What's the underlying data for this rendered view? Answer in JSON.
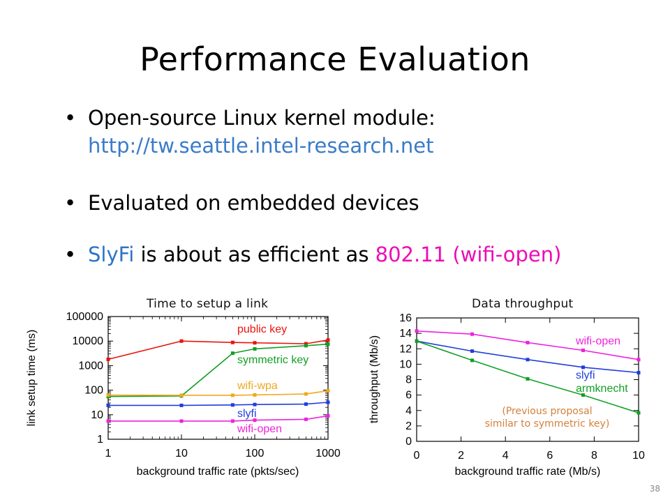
{
  "slide": {
    "title": "Performance Evaluation",
    "bullets": {
      "b1_text": "Open-source Linux kernel module:",
      "b1_url": "http://tw.seattle.intel-research.net",
      "b2_text": "Evaluated on embedded devices",
      "b3_part1": "SlyFi",
      "b3_part2": " is about as efficient as ",
      "b3_part3": "802.11 (wifi-open)",
      "bullet_glyph": "•"
    },
    "page_number": "38",
    "colors": {
      "slyfi_text": "#2e74c8",
      "wifi_open_text": "#ee0bb5",
      "url": "#3a7bc8"
    }
  },
  "chart_data": [
    {
      "type": "line",
      "caption": "Time to setup a link",
      "xlabel": "background traffic rate (pkts/sec)",
      "ylabel": "link setup time (ms)",
      "xscale": "log",
      "yscale": "log",
      "xlim": [
        1,
        1000
      ],
      "ylim": [
        1,
        100000
      ],
      "xticks": [
        1,
        10,
        100,
        1000
      ],
      "xtick_labels": [
        "1",
        "10",
        "100",
        "1000"
      ],
      "yticks": [
        1,
        10,
        100,
        1000,
        10000,
        100000
      ],
      "ytick_labels": [
        "1",
        "10",
        "100",
        "1000",
        "10000",
        "100000"
      ],
      "grid": false,
      "series": [
        {
          "name": "public key",
          "color": "#e8140c",
          "label_color": "#e8140c",
          "x": [
            1,
            10,
            50,
            100,
            500,
            1000
          ],
          "y": [
            1800,
            10000,
            8800,
            8500,
            7800,
            11000
          ]
        },
        {
          "name": "symmetric key",
          "color": "#12a023",
          "label_color": "#12a023",
          "x": [
            1,
            10,
            50,
            100,
            500,
            1000
          ],
          "y": [
            55,
            58,
            3200,
            4800,
            6500,
            7500
          ]
        },
        {
          "name": "wifi-wpa",
          "color": "#f0a81e",
          "label_color": "#f0a81e",
          "x": [
            1,
            10,
            50,
            100,
            500,
            1000
          ],
          "y": [
            63,
            62,
            62,
            64,
            70,
            95
          ]
        },
        {
          "name": "slyfi",
          "color": "#1f3fdc",
          "label_color": "#1f3fdc",
          "x": [
            1,
            10,
            50,
            100,
            500,
            1000
          ],
          "y": [
            24,
            24,
            25,
            26,
            27,
            32
          ]
        },
        {
          "name": "wifi-open",
          "color": "#ee22dd",
          "label_color": "#ee22dd",
          "x": [
            1,
            10,
            50,
            100,
            500,
            1000
          ],
          "y": [
            5.5,
            5.5,
            5.5,
            6,
            6.5,
            9
          ]
        }
      ]
    },
    {
      "type": "line",
      "caption": "Data throughput",
      "xlabel": "background traffic rate (Mb/s)",
      "ylabel": "throughput (Mb/s)",
      "xlim": [
        0,
        10
      ],
      "ylim": [
        0,
        16
      ],
      "xticks": [
        0,
        2,
        4,
        6,
        8,
        10
      ],
      "xtick_labels": [
        "0",
        "2",
        "4",
        "6",
        "8",
        "10"
      ],
      "yticks": [
        0,
        2,
        4,
        6,
        8,
        10,
        12,
        14,
        16
      ],
      "ytick_labels": [
        "0",
        "2",
        "4",
        "6",
        "8",
        "10",
        "12",
        "14",
        "16"
      ],
      "grid": false,
      "annotation": "(Previous proposal\nsimilar to symmetric key)",
      "annotation_color": "#d4813a",
      "series": [
        {
          "name": "wifi-open",
          "color": "#ee22dd",
          "label_color": "#ee22dd",
          "x": [
            0,
            2.5,
            5,
            7.5,
            10
          ],
          "y": [
            14.3,
            13.9,
            12.8,
            11.8,
            10.6
          ]
        },
        {
          "name": "slyfi",
          "color": "#1f3fdc",
          "label_color": "#1f3fdc",
          "x": [
            0,
            2.5,
            5,
            7.5,
            10
          ],
          "y": [
            13.0,
            11.7,
            10.6,
            9.6,
            8.9
          ]
        },
        {
          "name": "armknecht",
          "color": "#12a023",
          "label_color": "#12a023",
          "x": [
            0,
            2.5,
            5,
            7.5,
            10
          ],
          "y": [
            13.0,
            10.5,
            8.1,
            6.0,
            3.7
          ]
        }
      ]
    }
  ]
}
